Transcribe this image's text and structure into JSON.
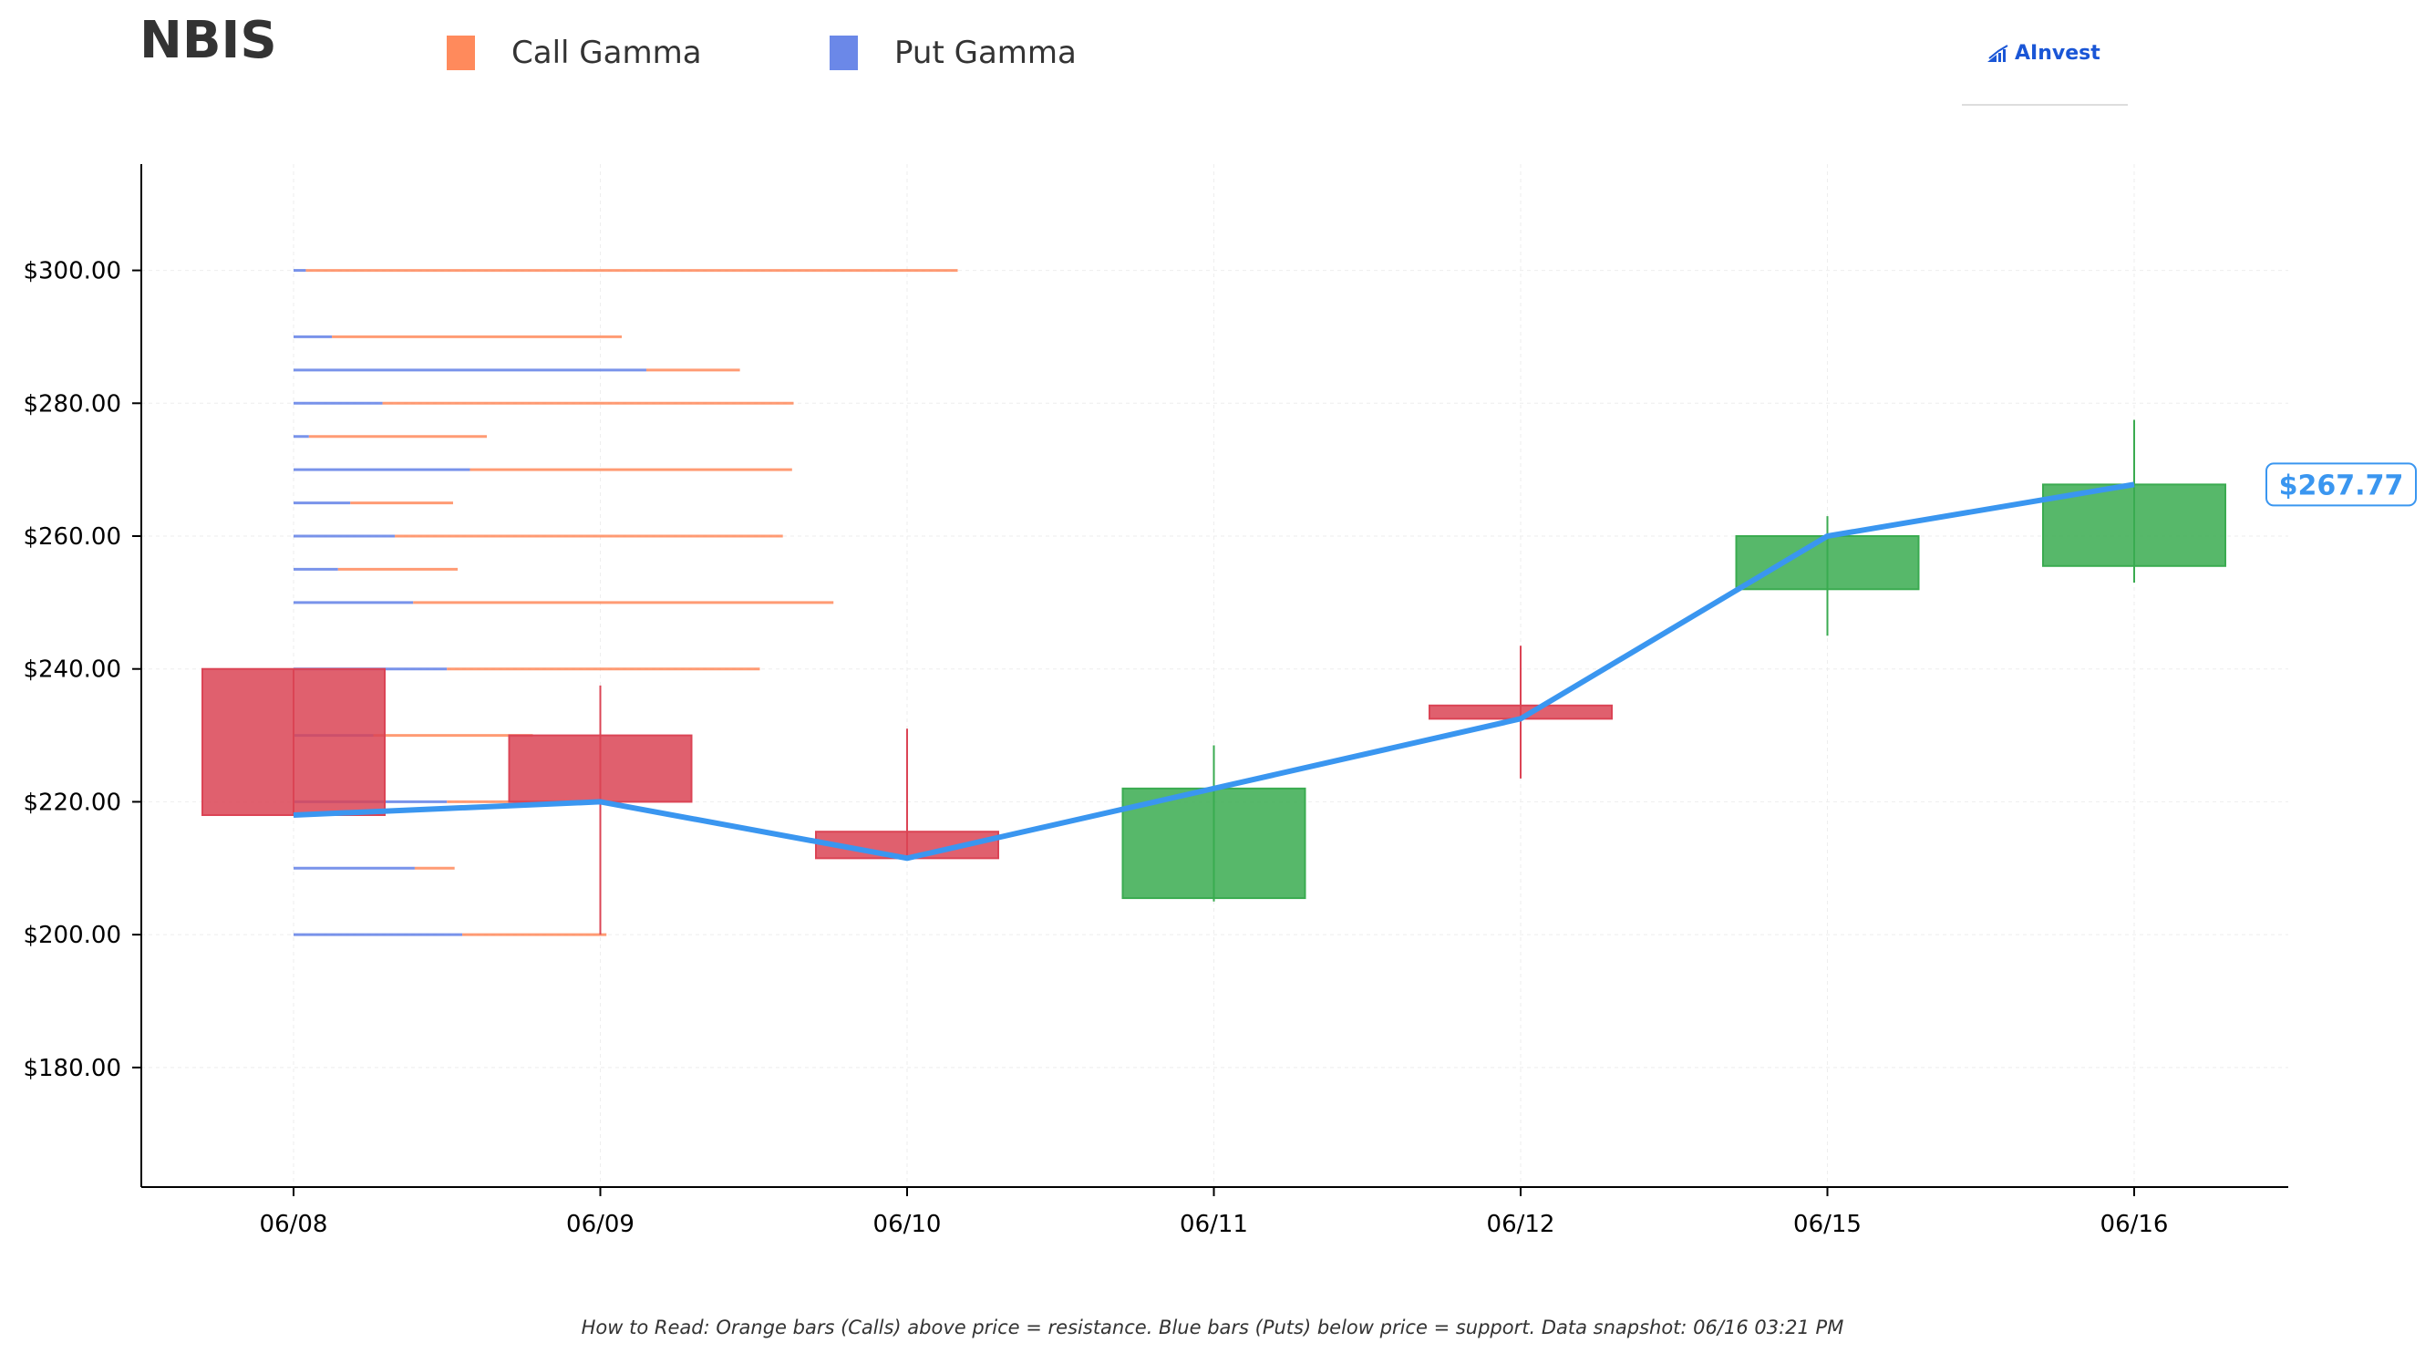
{
  "header": {
    "ticker": "NBIS",
    "logo_text": "AInvest"
  },
  "legend": [
    {
      "label": "Call Gamma",
      "color": "#ff8a5c"
    },
    {
      "label": "Put Gamma",
      "color": "#6b88e8"
    }
  ],
  "colors": {
    "up": "#3aab50",
    "down": "#db4455",
    "price_line": "#3a96f0",
    "call": "#ff8a5c",
    "put": "#6b88e8"
  },
  "chart_data": {
    "type": "candlestick",
    "categories": [
      "06/08",
      "06/09",
      "06/10",
      "06/11",
      "06/12",
      "06/15",
      "06/16"
    ],
    "candles": [
      {
        "open": 240.0,
        "high": 240.0,
        "low": 218.0,
        "close": 218.0
      },
      {
        "open": 230.0,
        "high": 237.5,
        "low": 200.0,
        "close": 220.0
      },
      {
        "open": 215.5,
        "high": 231.0,
        "low": 211.5,
        "close": 211.5
      },
      {
        "open": 205.5,
        "high": 228.5,
        "low": 205.0,
        "close": 222.0
      },
      {
        "open": 234.5,
        "high": 243.5,
        "low": 223.5,
        "close": 232.5
      },
      {
        "open": 252.0,
        "high": 263.0,
        "low": 245.0,
        "close": 260.0
      },
      {
        "open": 255.5,
        "high": 277.5,
        "low": 253.0,
        "close": 267.77
      }
    ],
    "price_line": [
      218.0,
      220.0,
      211.5,
      222.0,
      232.5,
      260.0,
      267.77
    ],
    "last_price_label": "$267.77",
    "gamma_levels": [
      {
        "strike": 300,
        "put": 0.08,
        "total": 4.33
      },
      {
        "strike": 290,
        "put": 0.25,
        "total": 2.14
      },
      {
        "strike": 285,
        "put": 2.3,
        "total": 2.91
      },
      {
        "strike": 280,
        "put": 0.58,
        "total": 3.26
      },
      {
        "strike": 275,
        "put": 0.1,
        "total": 1.26
      },
      {
        "strike": 270,
        "put": 1.15,
        "total": 3.25
      },
      {
        "strike": 265,
        "put": 0.37,
        "total": 1.04
      },
      {
        "strike": 260,
        "put": 0.66,
        "total": 3.19
      },
      {
        "strike": 255,
        "put": 0.29,
        "total": 1.07
      },
      {
        "strike": 250,
        "put": 0.78,
        "total": 3.52
      },
      {
        "strike": 240,
        "put": 1.0,
        "total": 3.04
      },
      {
        "strike": 230,
        "put": 0.52,
        "total": 1.56
      },
      {
        "strike": 220,
        "put": 1.0,
        "total": 1.81
      },
      {
        "strike": 210,
        "put": 0.79,
        "total": 1.05
      },
      {
        "strike": 200,
        "put": 1.1,
        "total": 2.04
      }
    ],
    "y_ticks": [
      "$180.00",
      "$200.00",
      "$220.00",
      "$240.00",
      "$260.00",
      "$280.00",
      "$300.00"
    ],
    "y_tick_values": [
      180,
      200,
      220,
      240,
      260,
      280,
      300
    ],
    "ylim": [
      162,
      316
    ],
    "grid": true
  },
  "footnote": "How to Read: Orange bars (Calls) above price = resistance. Blue bars (Puts) below price = support. Data snapshot: 06/16 03:21 PM"
}
